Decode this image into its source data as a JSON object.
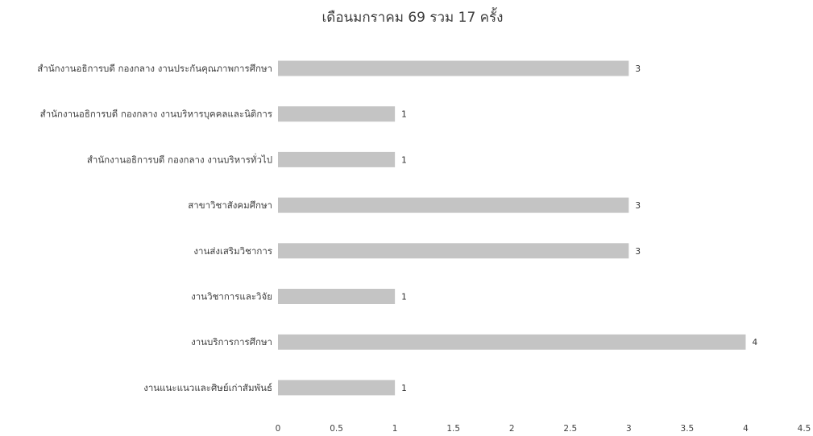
{
  "chart_data": {
    "type": "bar",
    "orientation": "horizontal",
    "title": "เดือนมกราคม 69 รวม 17 ครั้ง",
    "xlabel": "",
    "ylabel": "",
    "xlim": [
      0,
      4.5
    ],
    "x_ticks": [
      0,
      0.5,
      1,
      1.5,
      2,
      2.5,
      3,
      3.5,
      4,
      4.5
    ],
    "grid": false,
    "legend": "none",
    "bar_color": "#c4c4c4",
    "categories": [
      "สำนักงานอธิการบดี กองกลาง งานประกันคุณภาพการศึกษา",
      "สำนักงานอธิการบดี กองกลาง งานบริหารบุคคลและนิติการ",
      "สำนักงานอธิการบดี กองกลาง งานบริหารทั่วไป",
      "สาขาวิชาสังคมศึกษา",
      "งานส่งเสริมวิชาการ",
      "งานวิชาการและวิจัย",
      "งานบริการการศึกษา",
      "งานแนะแนวและศิษย์เก่าสัมพันธ์"
    ],
    "values": [
      3,
      1,
      1,
      3,
      3,
      1,
      4,
      1
    ],
    "data_labels": [
      "3",
      "1",
      "1",
      "3",
      "3",
      "1",
      "4",
      "1"
    ]
  }
}
